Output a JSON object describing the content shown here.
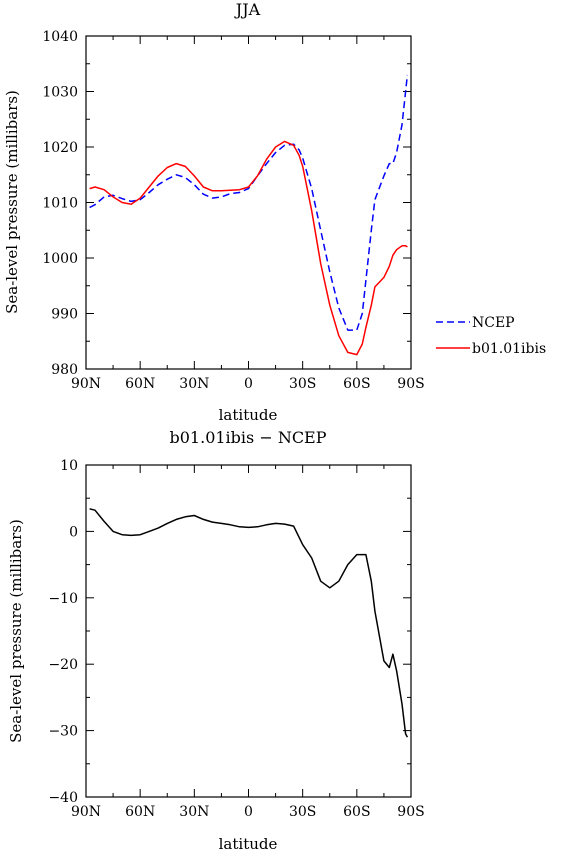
{
  "chart_data": [
    {
      "type": "line",
      "title": "JJA",
      "xlabel": "latitude",
      "ylabel": "Sea-level pressure (millibars)",
      "xlim": [
        -90,
        90
      ],
      "ylim": [
        980,
        1040
      ],
      "xticks": [
        -90,
        -60,
        -30,
        0,
        30,
        60,
        90
      ],
      "xtick_labels": [
        "90N",
        "60N",
        "30N",
        "0",
        "30S",
        "60S",
        "90S"
      ],
      "yticks": [
        980,
        990,
        1000,
        1010,
        1020,
        1030,
        1040
      ],
      "yminor_step": 5,
      "xminor_step": 15,
      "legend_position": "right-bottom outside",
      "series": [
        {
          "name": "NCEP",
          "color": "#0000ff",
          "dash": "dashed",
          "x": [
            -88,
            -85,
            -80,
            -75,
            -70,
            -65,
            -60,
            -55,
            -50,
            -45,
            -40,
            -35,
            -30,
            -25,
            -20,
            -15,
            -10,
            -5,
            0,
            5,
            10,
            15,
            20,
            25,
            28,
            30,
            35,
            40,
            45,
            50,
            55,
            60,
            63,
            65,
            68,
            70,
            75,
            78,
            80,
            82,
            85,
            87,
            88
          ],
          "y": [
            1009.1,
            1009.6,
            1011.0,
            1011.3,
            1010.7,
            1010.2,
            1010.5,
            1011.8,
            1013.2,
            1014.2,
            1015.0,
            1014.5,
            1013.2,
            1011.5,
            1010.8,
            1011.0,
            1011.6,
            1011.8,
            1012.5,
            1014.8,
            1017.0,
            1019.0,
            1020.3,
            1020.5,
            1019.5,
            1018.0,
            1012.5,
            1005.0,
            997.5,
            991.0,
            987.0,
            987.0,
            990.0,
            996.0,
            1005.0,
            1010.5,
            1014.8,
            1017.0,
            1017.0,
            1019.0,
            1024.0,
            1030.0,
            1033.0
          ]
        },
        {
          "name": "b01.01ibis",
          "color": "#ff0000",
          "dash": "solid",
          "x": [
            -88,
            -85,
            -80,
            -75,
            -70,
            -65,
            -60,
            -55,
            -50,
            -45,
            -40,
            -35,
            -30,
            -25,
            -20,
            -15,
            -10,
            -5,
            0,
            5,
            10,
            15,
            20,
            25,
            28,
            30,
            35,
            40,
            45,
            50,
            55,
            60,
            63,
            65,
            68,
            70,
            75,
            78,
            80,
            82,
            85,
            87,
            88
          ],
          "y": [
            1012.5,
            1012.8,
            1012.3,
            1011.0,
            1010.0,
            1009.7,
            1010.8,
            1012.8,
            1014.8,
            1016.3,
            1017.0,
            1016.5,
            1014.8,
            1012.8,
            1012.1,
            1012.1,
            1012.2,
            1012.3,
            1012.8,
            1014.8,
            1017.8,
            1020.0,
            1021.0,
            1020.3,
            1018.5,
            1016.5,
            1008.5,
            999.0,
            991.5,
            986.0,
            983.0,
            982.6,
            984.5,
            987.5,
            991.5,
            994.8,
            996.5,
            998.5,
            1000.5,
            1001.5,
            1002.2,
            1002.2,
            1002.0
          ]
        }
      ]
    },
    {
      "type": "line",
      "title": "b01.01ibis − NCEP",
      "xlabel": "latitude",
      "ylabel": "Sea-level pressure (millibars)",
      "xlim": [
        -90,
        90
      ],
      "ylim": [
        -40,
        10
      ],
      "xticks": [
        -90,
        -60,
        -30,
        0,
        30,
        60,
        90
      ],
      "xtick_labels": [
        "90N",
        "60N",
        "30N",
        "0",
        "30S",
        "60S",
        "90S"
      ],
      "yticks": [
        -40,
        -30,
        -20,
        -10,
        0,
        10
      ],
      "ytick_labels": [
        "−40",
        "−30",
        "−20",
        "−10",
        "0",
        "10"
      ],
      "yminor_step": 5,
      "xminor_step": 15,
      "series": [
        {
          "color": "#000000",
          "dash": "solid",
          "x": [
            -88,
            -85,
            -80,
            -75,
            -70,
            -65,
            -60,
            -55,
            -50,
            -45,
            -40,
            -35,
            -30,
            -25,
            -20,
            -15,
            -10,
            -5,
            0,
            5,
            10,
            15,
            20,
            25,
            30,
            35,
            40,
            45,
            50,
            55,
            60,
            65,
            68,
            70,
            75,
            78,
            80,
            82,
            85,
            87,
            88
          ],
          "y": [
            3.4,
            3.2,
            1.5,
            0.0,
            -0.5,
            -0.6,
            -0.5,
            0.0,
            0.5,
            1.2,
            1.8,
            2.2,
            2.4,
            1.8,
            1.4,
            1.2,
            1.0,
            0.7,
            0.6,
            0.7,
            1.0,
            1.2,
            1.1,
            0.8,
            -2.0,
            -4.0,
            -7.5,
            -8.5,
            -7.5,
            -5.0,
            -3.5,
            -3.5,
            -7.5,
            -12.0,
            -19.5,
            -20.5,
            -18.5,
            -21.0,
            -26.0,
            -30.5,
            -31.0
          ]
        }
      ]
    }
  ]
}
